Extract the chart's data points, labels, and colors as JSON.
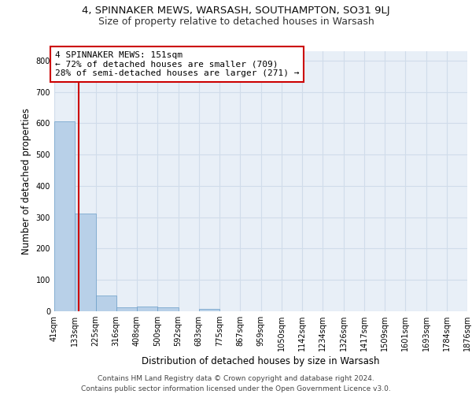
{
  "title1": "4, SPINNAKER MEWS, WARSASH, SOUTHAMPTON, SO31 9LJ",
  "title2": "Size of property relative to detached houses in Warsash",
  "xlabel": "Distribution of detached houses by size in Warsash",
  "ylabel": "Number of detached properties",
  "bar_values": [
    607,
    312,
    50,
    12,
    14,
    12,
    0,
    8,
    0,
    0,
    0,
    0,
    0,
    0,
    0,
    0,
    0,
    0,
    0,
    0
  ],
  "bin_edges": [
    41,
    133,
    225,
    316,
    408,
    500,
    592,
    683,
    775,
    867,
    959,
    1050,
    1142,
    1234,
    1326,
    1417,
    1509,
    1601,
    1693,
    1784,
    1876
  ],
  "bar_color": "#b8d0e8",
  "bar_edge_color": "#6a9dc8",
  "grid_color": "#d0dcea",
  "background_color": "#e8eff7",
  "vline_x": 151,
  "vline_color": "#cc0000",
  "annotation_text": "4 SPINNAKER MEWS: 151sqm\n← 72% of detached houses are smaller (709)\n28% of semi-detached houses are larger (271) →",
  "annotation_box_color": "#cc0000",
  "ylim": [
    0,
    830
  ],
  "yticks": [
    0,
    100,
    200,
    300,
    400,
    500,
    600,
    700,
    800
  ],
  "footer1": "Contains HM Land Registry data © Crown copyright and database right 2024.",
  "footer2": "Contains public sector information licensed under the Open Government Licence v3.0.",
  "title1_fontsize": 9.5,
  "title2_fontsize": 9,
  "xlabel_fontsize": 8.5,
  "ylabel_fontsize": 8.5,
  "tick_fontsize": 7,
  "annotation_fontsize": 8,
  "footer_fontsize": 6.5
}
